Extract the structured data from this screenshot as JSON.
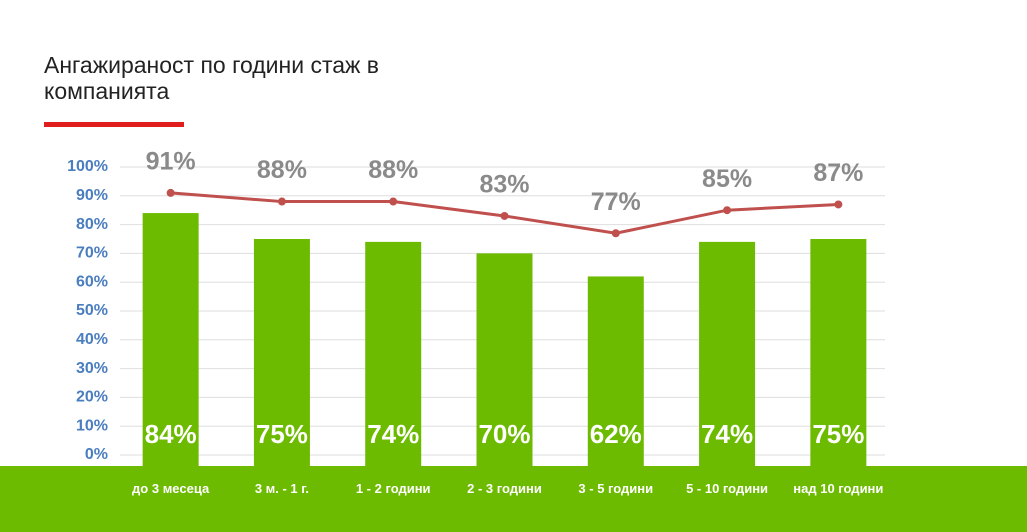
{
  "chart_data": {
    "type": "bar",
    "title": "Ангажираност по години  стаж в компанията",
    "categories": [
      "до 3 месеца",
      "3 м. - 1 г.",
      "1 - 2 години",
      "2 - 3 години",
      "3 - 5 години",
      "5 - 10 години",
      "над 10 години"
    ],
    "series": [
      {
        "type": "bar",
        "color": "#6dbb00",
        "values": [
          84,
          75,
          74,
          70,
          62,
          74,
          75
        ],
        "value_labels": [
          "84%",
          "75%",
          "74%",
          "70%",
          "62%",
          "74%",
          "75%"
        ]
      },
      {
        "type": "line",
        "color": "#c0504d",
        "values": [
          91,
          88,
          88,
          83,
          77,
          85,
          87
        ],
        "value_labels": [
          "91%",
          "88%",
          "88%",
          "83%",
          "77%",
          "85%",
          "87%"
        ]
      }
    ],
    "ylim": [
      0,
      100
    ],
    "yticks": [
      {
        "value": 0,
        "label": "0%"
      },
      {
        "value": 10,
        "label": "10%"
      },
      {
        "value": 20,
        "label": "20%"
      },
      {
        "value": 30,
        "label": "30%"
      },
      {
        "value": 40,
        "label": "40%"
      },
      {
        "value": 50,
        "label": "50%"
      },
      {
        "value": 60,
        "label": "60%"
      },
      {
        "value": 70,
        "label": "70%"
      },
      {
        "value": 80,
        "label": "80%"
      },
      {
        "value": 90,
        "label": "90%"
      },
      {
        "value": 100,
        "label": "100%"
      }
    ],
    "grid": true
  }
}
